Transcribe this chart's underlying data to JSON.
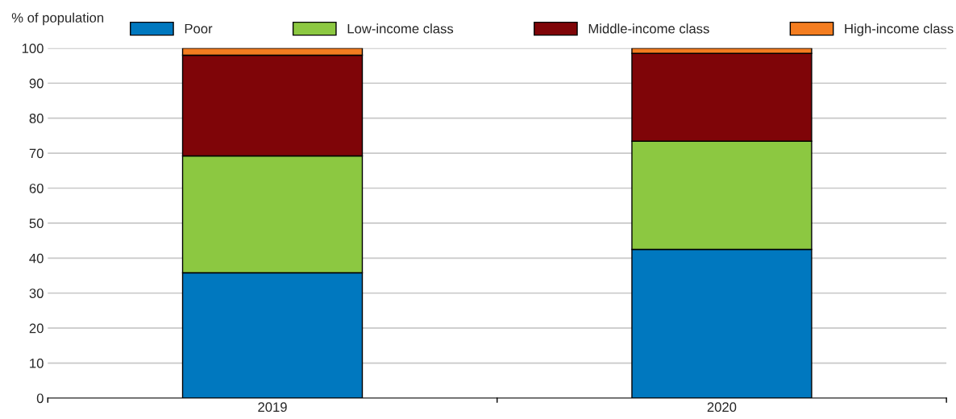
{
  "chart_data": {
    "type": "bar",
    "stacked": true,
    "ylabel": "% of population",
    "categories": [
      "2019",
      "2020"
    ],
    "series": [
      {
        "name": "Poor",
        "color": "#0078bf",
        "values": [
          35.8,
          42.5
        ]
      },
      {
        "name": "Low-income class",
        "color": "#8cc841",
        "values": [
          33.4,
          30.9
        ]
      },
      {
        "name": "Middle-income class",
        "color": "#7f0508",
        "values": [
          28.8,
          25.1
        ]
      },
      {
        "name": "High-income class",
        "color": "#f47d20",
        "values": [
          2.0,
          1.5
        ]
      }
    ],
    "ylim": [
      0,
      100
    ],
    "yticks": [
      0,
      10,
      20,
      30,
      40,
      50,
      60,
      70,
      80,
      90,
      100
    ],
    "grid": "y",
    "legend": "top"
  }
}
